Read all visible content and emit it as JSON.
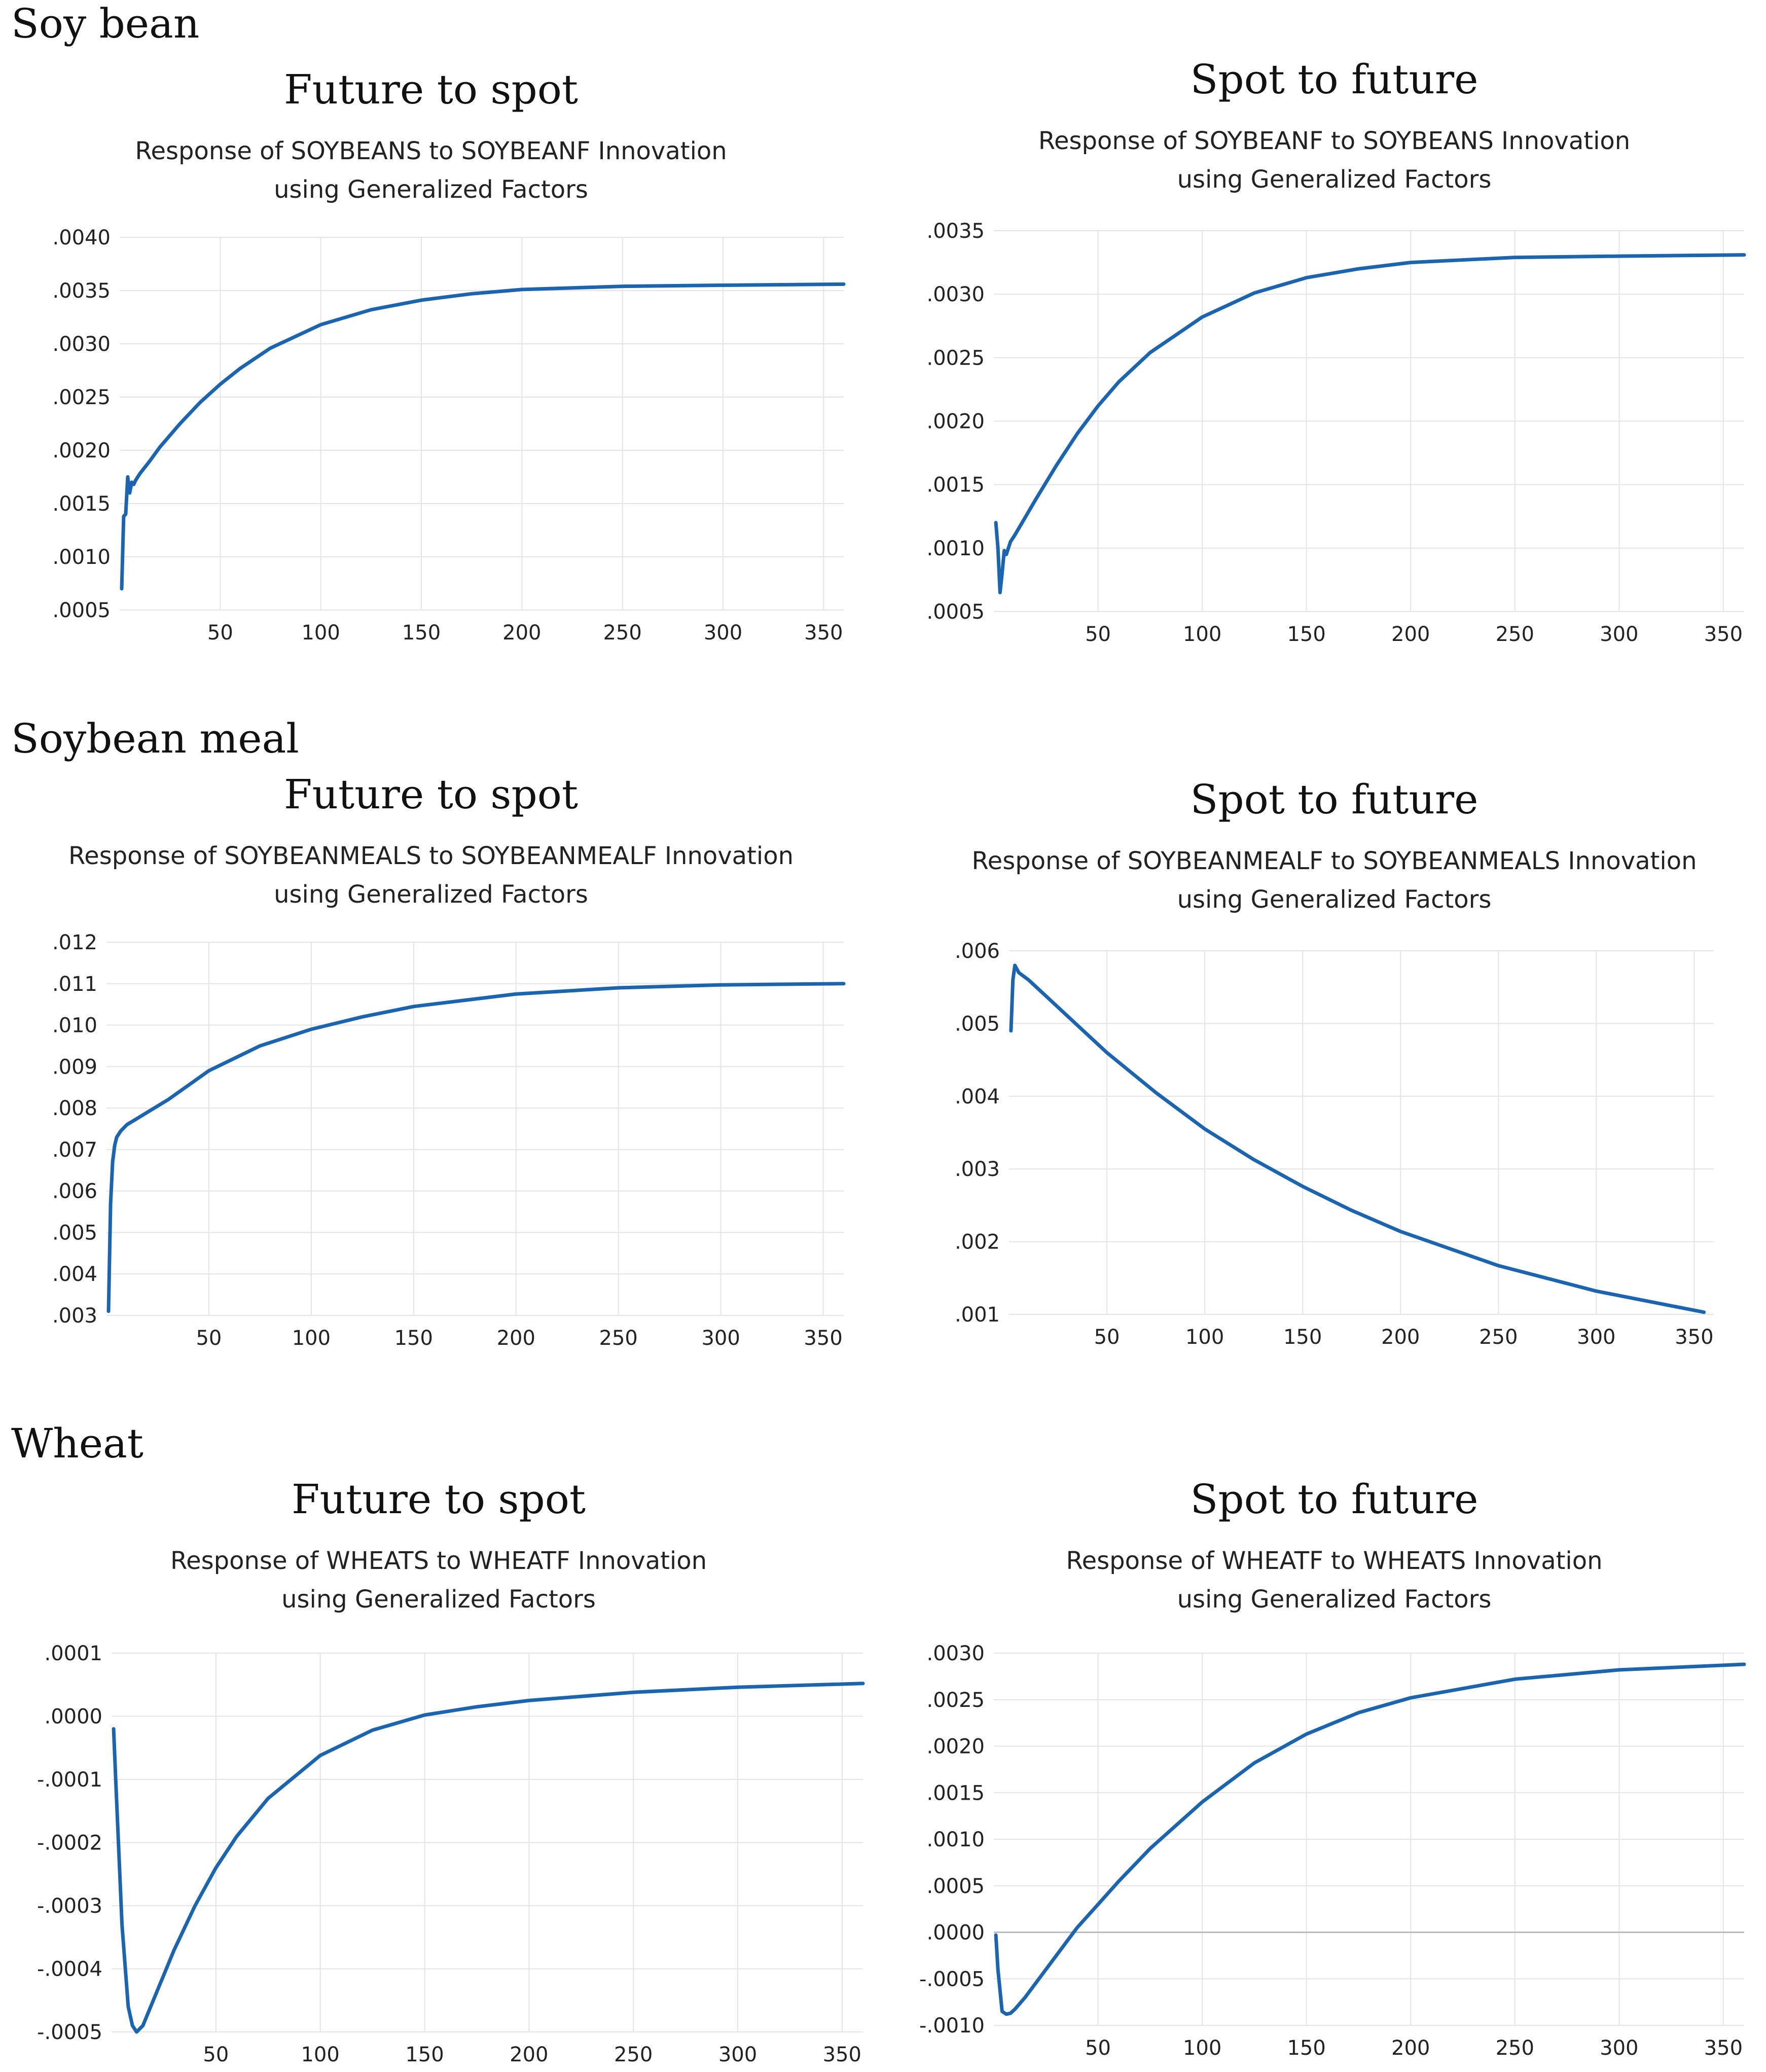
{
  "sections": [
    {
      "label": "Soy bean"
    },
    {
      "label": "Soybean meal"
    },
    {
      "label": "Wheat"
    }
  ],
  "line_color": "#1a64b0",
  "grid_color": "#e4e4e4",
  "panels": [
    {
      "heading": "Future to spot",
      "sub1": "Response of SOYBEANS to SOYBEANF Innovation",
      "sub2": "using Generalized Factors"
    },
    {
      "heading": "Spot to future",
      "sub1": "Response of SOYBEANF to SOYBEANS Innovation",
      "sub2": "using Generalized Factors"
    },
    {
      "heading": "Future to spot",
      "sub1": "Response of SOYBEANMEALS to SOYBEANMEALF Innovation",
      "sub2": "using Generalized Factors"
    },
    {
      "heading": "Spot to future",
      "sub1": "Response of SOYBEANMEALF to SOYBEANMEALS Innovation",
      "sub2": "using Generalized Factors"
    },
    {
      "heading": "Future to spot",
      "sub1": "Response of WHEATS to WHEATF Innovation",
      "sub2": "using Generalized Factors"
    },
    {
      "heading": "Spot to future",
      "sub1": "Response of WHEATF to WHEATS Innovation",
      "sub2": "using Generalized Factors"
    }
  ],
  "chart_data": [
    {
      "type": "line",
      "title": "Response of SOYBEANS to SOYBEANF Innovation using Generalized Factors",
      "xlim": [
        0,
        360
      ],
      "ylim": [
        0.0005,
        0.004
      ],
      "x_ticks": [
        50,
        100,
        150,
        200,
        250,
        300,
        350
      ],
      "x_tick_labels": [
        "50",
        "100",
        "150",
        "200",
        "250",
        "300",
        "350"
      ],
      "y_ticks": [
        0.0005,
        0.001,
        0.0015,
        0.002,
        0.0025,
        0.003,
        0.0035,
        0.004
      ],
      "y_tick_labels": [
        ".0005",
        ".0010",
        ".0015",
        ".0020",
        ".0025",
        ".0030",
        ".0035",
        ".0040"
      ],
      "x": [
        1,
        2,
        3,
        4,
        5,
        6,
        7,
        8,
        10,
        15,
        20,
        30,
        40,
        50,
        60,
        75,
        100,
        125,
        150,
        175,
        200,
        250,
        300,
        360
      ],
      "y": [
        0.0007,
        0.00138,
        0.0014,
        0.00175,
        0.0016,
        0.0017,
        0.00168,
        0.00172,
        0.00178,
        0.0019,
        0.00203,
        0.00225,
        0.00245,
        0.00262,
        0.00277,
        0.00296,
        0.00318,
        0.00332,
        0.00341,
        0.00347,
        0.00351,
        0.00354,
        0.00355,
        0.00356
      ]
    },
    {
      "type": "line",
      "title": "Response of SOYBEANF to SOYBEANS Innovation using Generalized Factors",
      "xlim": [
        0,
        360
      ],
      "ylim": [
        0.0005,
        0.0035
      ],
      "x_ticks": [
        50,
        100,
        150,
        200,
        250,
        300,
        350
      ],
      "x_tick_labels": [
        "50",
        "100",
        "150",
        "200",
        "250",
        "300",
        "350"
      ],
      "y_ticks": [
        0.0005,
        0.001,
        0.0015,
        0.002,
        0.0025,
        0.003,
        0.0035
      ],
      "y_tick_labels": [
        ".0005",
        ".0010",
        ".0015",
        ".0020",
        ".0025",
        ".0030",
        ".0035"
      ],
      "x": [
        1,
        2,
        3,
        4,
        5,
        6,
        8,
        10,
        15,
        20,
        30,
        40,
        50,
        60,
        75,
        100,
        125,
        150,
        175,
        200,
        250,
        300,
        360
      ],
      "y": [
        0.0012,
        0.001,
        0.00065,
        0.0008,
        0.00098,
        0.00095,
        0.00105,
        0.0011,
        0.00124,
        0.00138,
        0.00165,
        0.0019,
        0.00212,
        0.00231,
        0.00254,
        0.00282,
        0.00301,
        0.00313,
        0.0032,
        0.00325,
        0.00329,
        0.0033,
        0.00331
      ]
    },
    {
      "type": "line",
      "title": "Response of SOYBEANMEALS to SOYBEANMEALF Innovation using Generalized Factors",
      "xlim": [
        0,
        360
      ],
      "ylim": [
        0.003,
        0.012
      ],
      "x_ticks": [
        50,
        100,
        150,
        200,
        250,
        300,
        350
      ],
      "x_tick_labels": [
        "50",
        "100",
        "150",
        "200",
        "250",
        "300",
        "350"
      ],
      "y_ticks": [
        0.003,
        0.004,
        0.005,
        0.006,
        0.007,
        0.008,
        0.009,
        0.01,
        0.011,
        0.012
      ],
      "y_tick_labels": [
        ".003",
        ".004",
        ".005",
        ".006",
        ".007",
        ".008",
        ".009",
        ".010",
        ".011",
        ".012"
      ],
      "x": [
        1,
        2,
        3,
        4,
        5,
        7,
        10,
        15,
        20,
        30,
        50,
        75,
        100,
        125,
        150,
        175,
        200,
        250,
        300,
        360
      ],
      "y": [
        0.0031,
        0.0057,
        0.0067,
        0.0071,
        0.0073,
        0.00745,
        0.0076,
        0.00775,
        0.0079,
        0.0082,
        0.0089,
        0.0095,
        0.0099,
        0.0102,
        0.01045,
        0.0106,
        0.01075,
        0.0109,
        0.01097,
        0.011
      ]
    },
    {
      "type": "line",
      "title": "Response of SOYBEANMEALF to SOYBEANMEALS Innovation using Generalized Factors",
      "xlim": [
        0,
        360
      ],
      "ylim": [
        0.001,
        0.006
      ],
      "x_ticks": [
        50,
        100,
        150,
        200,
        250,
        300,
        350
      ],
      "x_tick_labels": [
        "50",
        "100",
        "150",
        "200",
        "250",
        "300",
        "350"
      ],
      "y_ticks": [
        0.001,
        0.002,
        0.003,
        0.004,
        0.005,
        0.006
      ],
      "y_tick_labels": [
        ".001",
        ".002",
        ".003",
        ".004",
        ".005",
        ".006"
      ],
      "x": [
        1,
        2,
        3,
        5,
        10,
        20,
        30,
        50,
        75,
        100,
        125,
        150,
        175,
        200,
        250,
        300,
        355
      ],
      "y": [
        0.0049,
        0.0056,
        0.0058,
        0.0057,
        0.0056,
        0.00535,
        0.0051,
        0.0046,
        0.00405,
        0.00355,
        0.00313,
        0.00276,
        0.00243,
        0.00214,
        0.00167,
        0.00132,
        0.00103
      ]
    },
    {
      "type": "line",
      "title": "Response of WHEATS to WHEATF Innovation using Generalized Factors",
      "xlim": [
        0,
        360
      ],
      "ylim": [
        -0.0005,
        0.0001
      ],
      "x_ticks": [
        50,
        100,
        150,
        200,
        250,
        300,
        350
      ],
      "x_tick_labels": [
        "50",
        "100",
        "150",
        "200",
        "250",
        "300",
        "350"
      ],
      "y_ticks": [
        -0.0005,
        -0.0004,
        -0.0003,
        -0.0002,
        -0.0001,
        0.0,
        0.0001
      ],
      "y_tick_labels": [
        "-.0005",
        "-.0004",
        "-.0003",
        "-.0002",
        "-.0001",
        ".0000",
        ".0001"
      ],
      "x": [
        1,
        2,
        5,
        8,
        10,
        12,
        15,
        20,
        30,
        40,
        50,
        60,
        75,
        100,
        125,
        150,
        175,
        200,
        250,
        300,
        360
      ],
      "y": [
        -2e-05,
        -0.0001,
        -0.00033,
        -0.00046,
        -0.00049,
        -0.0005,
        -0.00049,
        -0.00045,
        -0.00037,
        -0.0003,
        -0.00024,
        -0.00019,
        -0.00013,
        -6.2e-05,
        -2.2e-05,
        2e-06,
        1.5e-05,
        2.5e-05,
        3.8e-05,
        4.6e-05,
        5.2e-05
      ]
    },
    {
      "type": "line",
      "title": "Response of WHEATF to WHEATS Innovation using Generalized Factors",
      "xlim": [
        0,
        360
      ],
      "ylim": [
        -0.001,
        0.003
      ],
      "x_ticks": [
        50,
        100,
        150,
        200,
        250,
        300,
        350
      ],
      "x_tick_labels": [
        "50",
        "100",
        "150",
        "200",
        "250",
        "300",
        "350"
      ],
      "y_ticks": [
        -0.001,
        -0.0005,
        0.0,
        0.0005,
        0.001,
        0.0015,
        0.002,
        0.0025,
        0.003
      ],
      "y_tick_labels": [
        "-.0010",
        "-.0005",
        ".0000",
        ".0005",
        ".0010",
        ".0015",
        ".0020",
        ".0025",
        ".0030"
      ],
      "zero_line": true,
      "x": [
        1,
        2,
        4,
        6,
        8,
        10,
        15,
        20,
        30,
        40,
        50,
        60,
        75,
        100,
        125,
        150,
        175,
        200,
        250,
        300,
        360
      ],
      "y": [
        -3e-05,
        -0.0004,
        -0.00085,
        -0.00088,
        -0.00087,
        -0.00083,
        -0.0007,
        -0.00055,
        -0.00025,
        5e-05,
        0.0003,
        0.00055,
        0.0009,
        0.0014,
        0.00182,
        0.00213,
        0.00236,
        0.00252,
        0.00272,
        0.00282,
        0.00288
      ]
    }
  ]
}
